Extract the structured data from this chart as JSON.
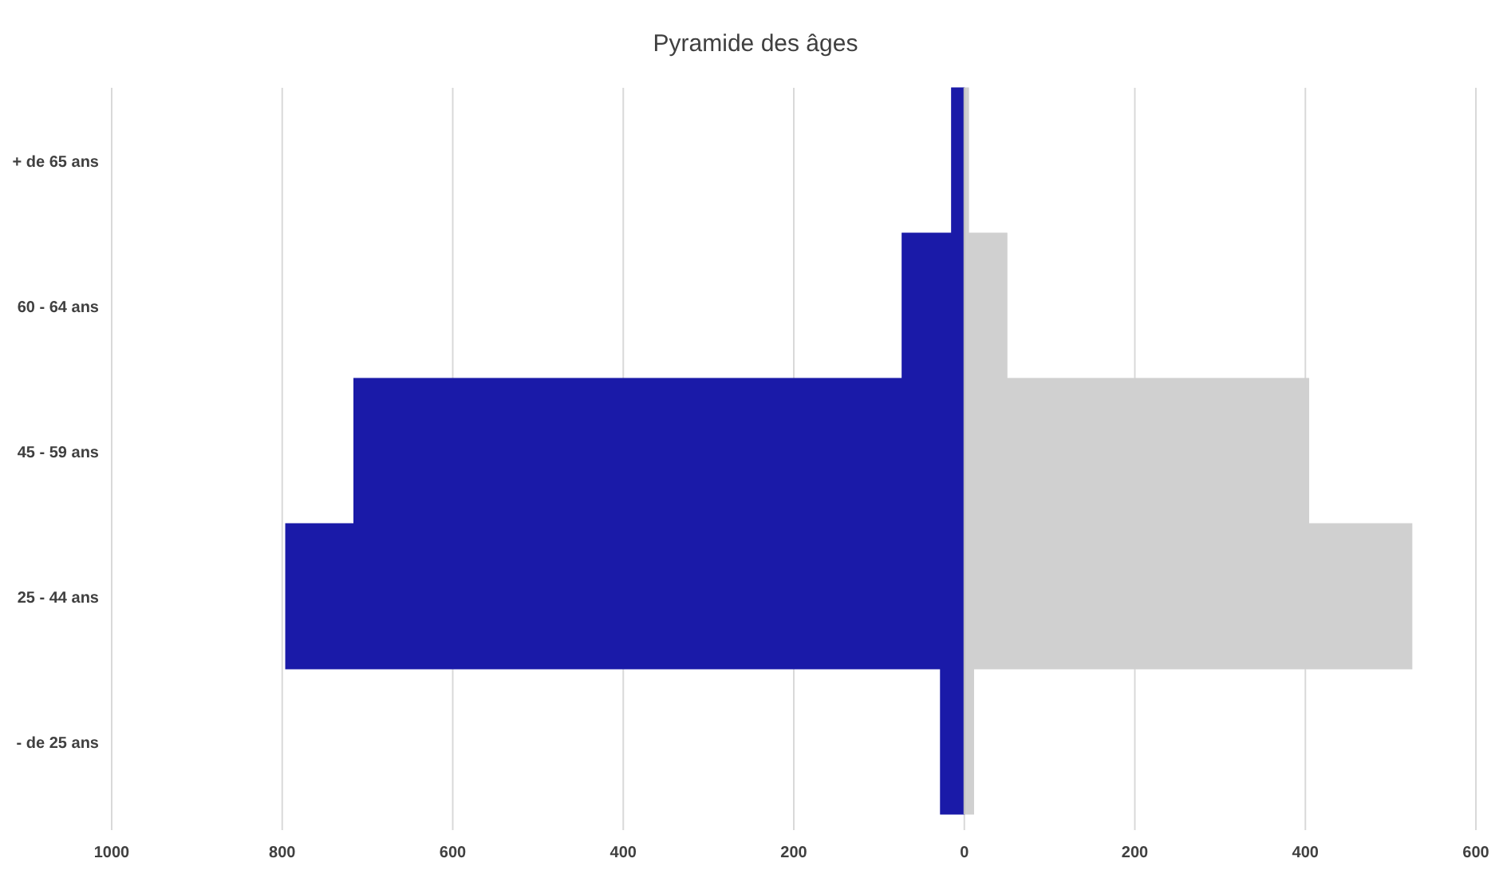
{
  "chart_data": {
    "type": "bar",
    "orientation": "horizontal",
    "stacked": true,
    "title": "Pyramide des âges",
    "categories": [
      "+ de 65 ans",
      "60 - 64 ans",
      "45 - 59 ans",
      "25 - 44 ans",
      "- de 25 ans"
    ],
    "series": [
      {
        "color": "#1a1aa8",
        "values": [
          -15,
          -73,
          -716,
          -796,
          -28
        ]
      },
      {
        "color": "#d0d0d0",
        "values": [
          5,
          50,
          404,
          525,
          11
        ]
      }
    ],
    "xlim": [
      -1000,
      600
    ],
    "xticks": [
      {
        "value": -1000,
        "label": "1000"
      },
      {
        "value": -800,
        "label": "800"
      },
      {
        "value": -600,
        "label": "600"
      },
      {
        "value": -400,
        "label": "400"
      },
      {
        "value": -200,
        "label": "200"
      },
      0,
      200,
      400,
      600
    ],
    "grid": "x"
  }
}
